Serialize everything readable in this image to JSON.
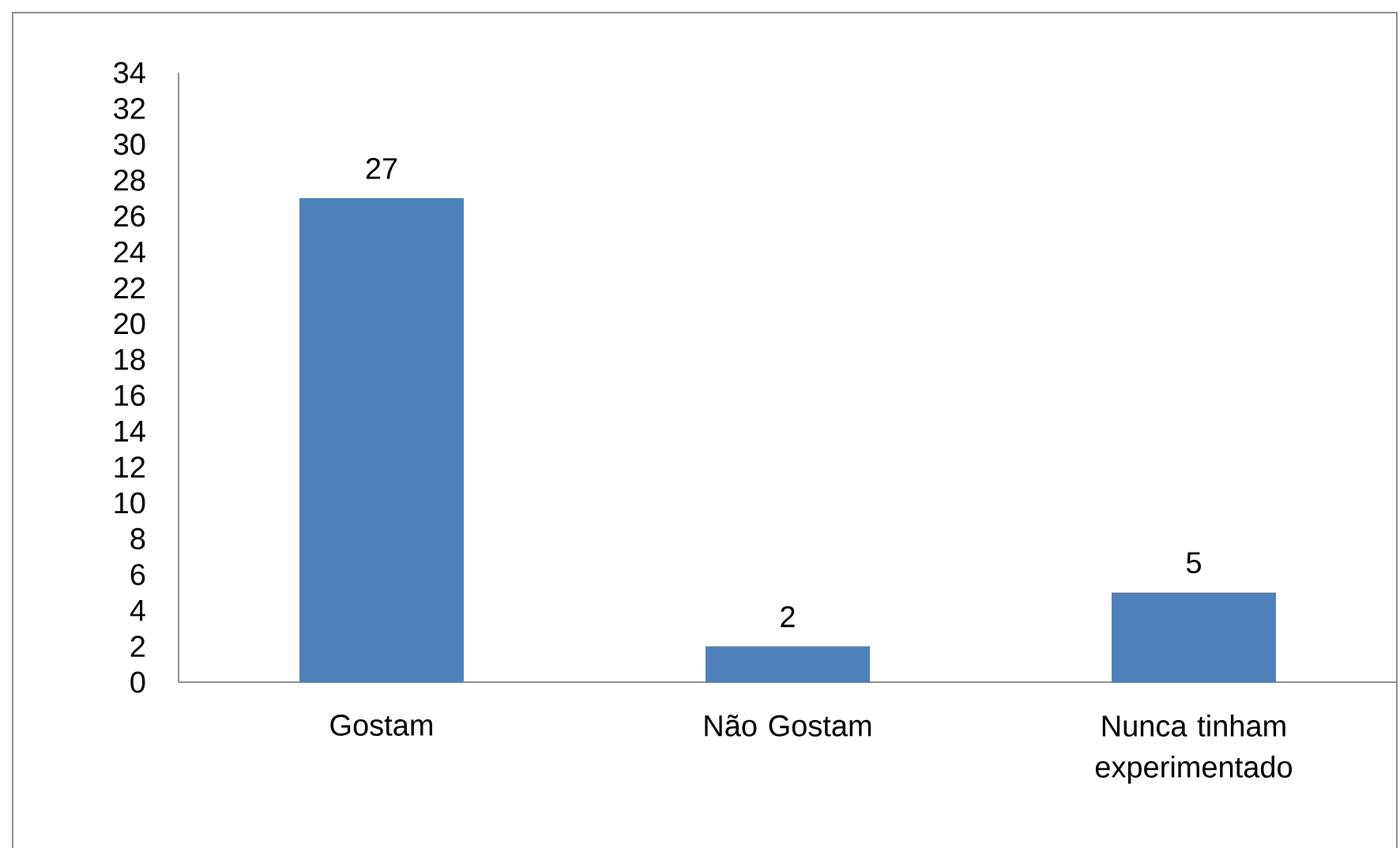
{
  "chart_data": {
    "type": "bar",
    "categories": [
      "Gostam",
      "Não Gostam",
      "Nunca tinham experimentado"
    ],
    "values": [
      27,
      2,
      5
    ],
    "color": "#4f81bd",
    "ylim": [
      0,
      34
    ],
    "yticks": [
      0,
      2,
      4,
      6,
      8,
      10,
      12,
      14,
      16,
      18,
      20,
      22,
      24,
      26,
      28,
      30,
      32,
      34
    ],
    "data_labels": true
  }
}
